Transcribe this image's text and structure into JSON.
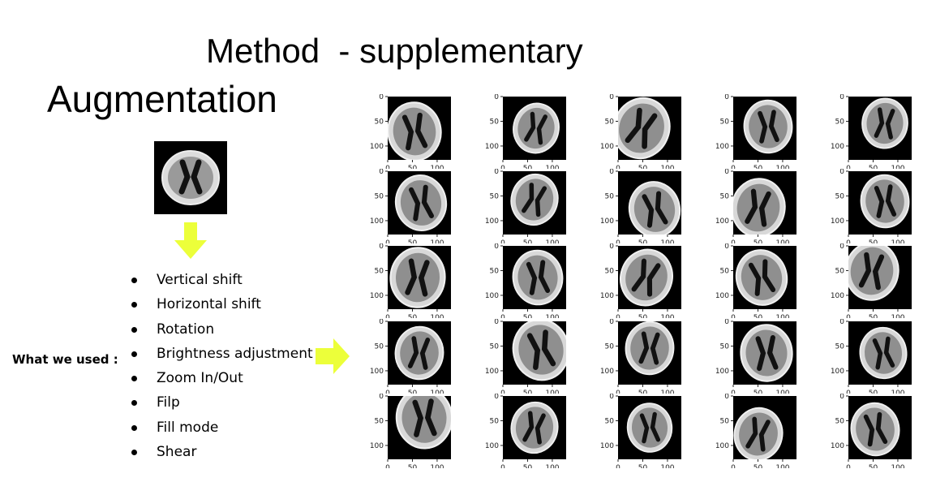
{
  "slide": {
    "title": "Method  - supplementary",
    "section_title": "Augmentation"
  },
  "left_panel": {
    "used_label": "What we used :",
    "augmentations": [
      "Vertical shift",
      "Horizontal shift",
      "Rotation",
      "Brightness adjustment",
      "Zoom In/Out",
      "Filp",
      "Fill mode",
      "Shear"
    ],
    "arrow_color": "#ecff3a"
  },
  "grid": {
    "rows": 5,
    "cols": 5,
    "y_ticks": [
      "0",
      "50",
      "100"
    ],
    "x_ticks": [
      "0",
      "50",
      "100"
    ]
  }
}
